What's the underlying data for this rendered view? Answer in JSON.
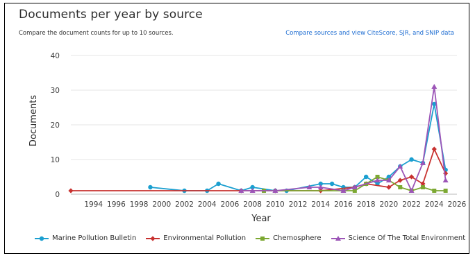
{
  "header": {
    "title": "Documents per year by source",
    "subtitle": "Compare the document counts for up to 10 sources.",
    "link_label": "Compare sources and view CiteScore, SJR, and SNIP data"
  },
  "chart_data": {
    "type": "line",
    "xlabel": "Year",
    "ylabel": "Documents",
    "xlim": [
      1992,
      2026
    ],
    "ylim": [
      0,
      40
    ],
    "yticks": [
      0,
      10,
      20,
      30,
      40
    ],
    "xticks": [
      1994,
      1996,
      1998,
      2000,
      2002,
      2004,
      2006,
      2008,
      2010,
      2012,
      2014,
      2016,
      2018,
      2020,
      2022,
      2024,
      2026
    ],
    "grid": "horizontal",
    "legend_position": "bottom",
    "series": [
      {
        "name": "Marine Pollution Bulletin",
        "color": "#1b9fd0",
        "marker": "circle",
        "x": [
          1999,
          2002,
          2004,
          2005,
          2007,
          2008,
          2010,
          2011,
          2014,
          2015,
          2016,
          2017,
          2018,
          2019,
          2020,
          2021,
          2022,
          2023,
          2024,
          2025
        ],
        "values": [
          2,
          1,
          1,
          3,
          1,
          2,
          1,
          1,
          3,
          3,
          2,
          2,
          5,
          3,
          5,
          8,
          10,
          9,
          26,
          7
        ]
      },
      {
        "name": "Environmental Pollution",
        "color": "#c8312f",
        "marker": "diamond",
        "x": [
          1992,
          2007,
          2010,
          2014,
          2017,
          2018,
          2020,
          2021,
          2022,
          2023,
          2024,
          2025
        ],
        "values": [
          1,
          1,
          1,
          1,
          2,
          3,
          2,
          4,
          5,
          3,
          13,
          6
        ]
      },
      {
        "name": "Chemosphere",
        "color": "#7ca832",
        "marker": "square",
        "x": [
          2009,
          2016,
          2017,
          2018,
          2019,
          2020,
          2021,
          2022,
          2023,
          2024,
          2025
        ],
        "values": [
          1,
          1,
          1,
          3,
          5,
          4,
          2,
          1,
          2,
          1,
          1
        ]
      },
      {
        "name": "Science Of The Total Environment",
        "color": "#9c55b7",
        "marker": "triangle",
        "x": [
          2007,
          2008,
          2010,
          2013,
          2014,
          2016,
          2017,
          2019,
          2020,
          2021,
          2022,
          2023,
          2024,
          2025
        ],
        "values": [
          1,
          1,
          1,
          2,
          2,
          1,
          2,
          4,
          4,
          8,
          1,
          9,
          31,
          4
        ]
      }
    ]
  }
}
